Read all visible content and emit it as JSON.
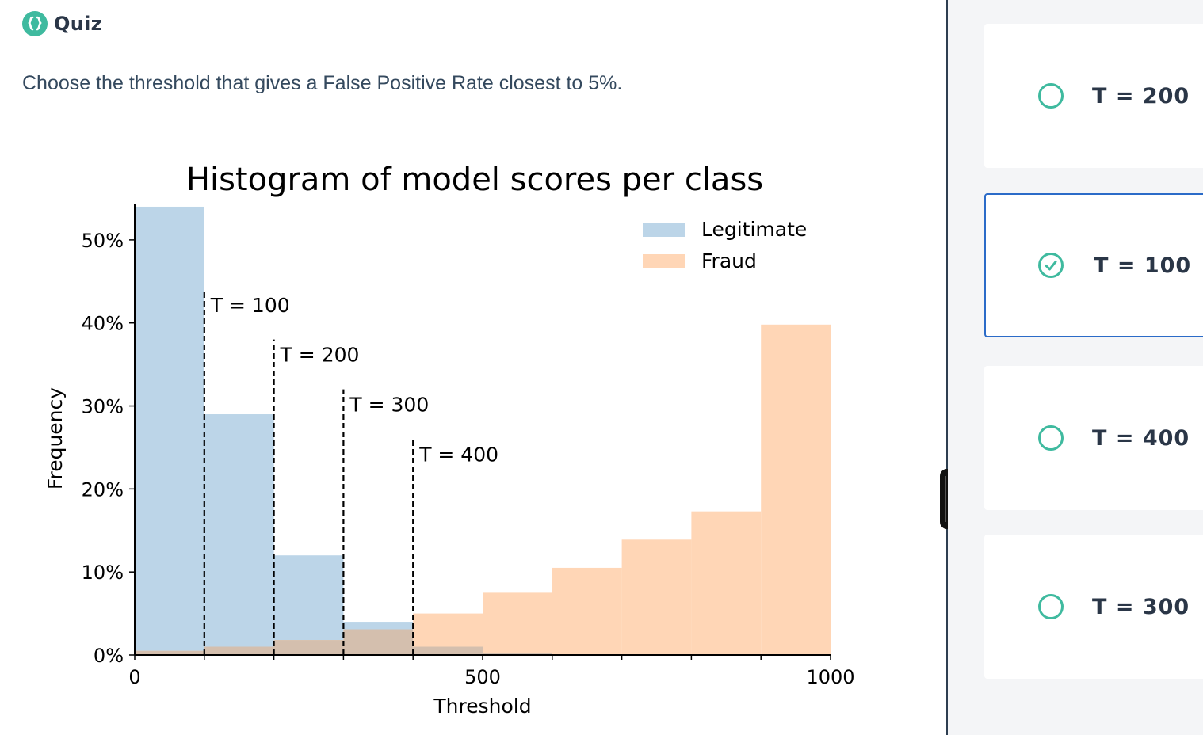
{
  "header": {
    "title": "Quiz",
    "logo_icon": "curly-braces-icon",
    "logo_color": "#3fba9f"
  },
  "question": "Choose the threshold that gives a False Positive Rate closest to 5%.",
  "chart_data": {
    "type": "bar",
    "title": "Histogram of model scores per class",
    "xlabel": "Threshold",
    "ylabel": "Frequency",
    "xlim": [
      0,
      1000
    ],
    "ylim": [
      0,
      0.56
    ],
    "xticks": [
      "0",
      "500",
      "1000"
    ],
    "yticks": [
      "0%",
      "10%",
      "20%",
      "30%",
      "40%",
      "50%"
    ],
    "bin_edges": [
      0,
      100,
      200,
      300,
      400,
      500,
      600,
      700,
      800,
      900,
      1000
    ],
    "legend_position": "top-right",
    "series": [
      {
        "name": "Legitimate",
        "color": "#bcd5e8",
        "values": [
          0.54,
          0.29,
          0.12,
          0.04,
          0.01,
          0.002,
          0,
          0,
          0,
          0
        ]
      },
      {
        "name": "Fraud",
        "color": "#ffd6b6",
        "values": [
          0.005,
          0.01,
          0.018,
          0.031,
          0.05,
          0.075,
          0.105,
          0.139,
          0.173,
          0.398
        ]
      }
    ],
    "annotations": [
      {
        "x": 100,
        "label": "T = 100",
        "y_top": 0.44
      },
      {
        "x": 200,
        "label": "T = 200",
        "y_top": 0.38
      },
      {
        "x": 300,
        "label": "T = 300",
        "y_top": 0.32
      },
      {
        "x": 400,
        "label": "T = 400",
        "y_top": 0.26
      }
    ]
  },
  "options": [
    {
      "label": "T = 200",
      "selected": false
    },
    {
      "label": "T = 100",
      "selected": true
    },
    {
      "label": "T = 400",
      "selected": false
    },
    {
      "label": "T = 300",
      "selected": false
    }
  ],
  "colors": {
    "radio": "#3fba9f",
    "selected_border": "#2b6bc8"
  }
}
